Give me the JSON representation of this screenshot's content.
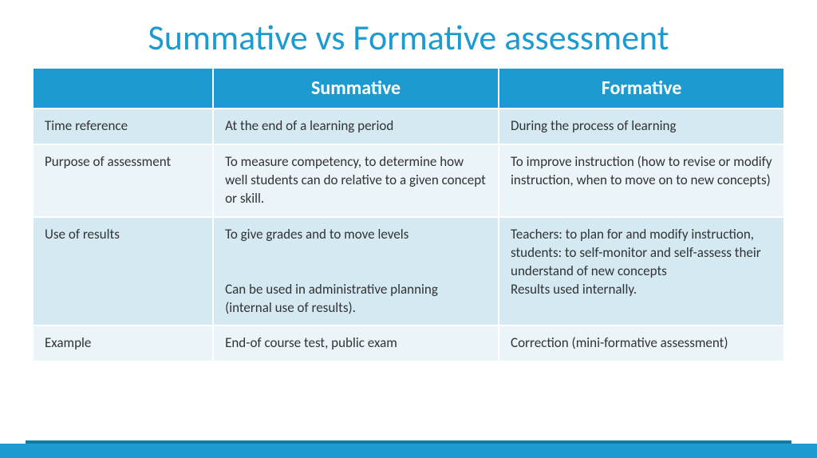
{
  "title": "Summative vs Formative assessment",
  "colors": {
    "accent": "#1d9bd1",
    "odd_row": "#d4e9f2",
    "even_row": "#eaf4f9",
    "text": "#333333",
    "header_text": "#ffffff"
  },
  "table": {
    "headers": {
      "corner": "",
      "col1": "Summative",
      "col2": "Formative"
    },
    "rows": [
      {
        "label": "Time reference",
        "summative": "At the end of a learning period",
        "formative": "During the process of learning"
      },
      {
        "label": "Purpose of assessment",
        "summative": "To measure competency, to determine how well students can do relative to a given concept or skill.",
        "formative": "To improve instruction (how to revise or modify instruction, when to move on to new concepts)"
      },
      {
        "label": "Use of results",
        "summative": "To give grades and to move levels\n\nCan be used in administrative planning (internal use of results).",
        "formative": "Teachers: to plan for and modify instruction, students: to self-monitor and self-assess their understand of new concepts\nResults used internally."
      },
      {
        "label": "Example",
        "summative": "End-of course test, public exam",
        "formative": "Correction (mini-formative assessment)"
      }
    ]
  }
}
